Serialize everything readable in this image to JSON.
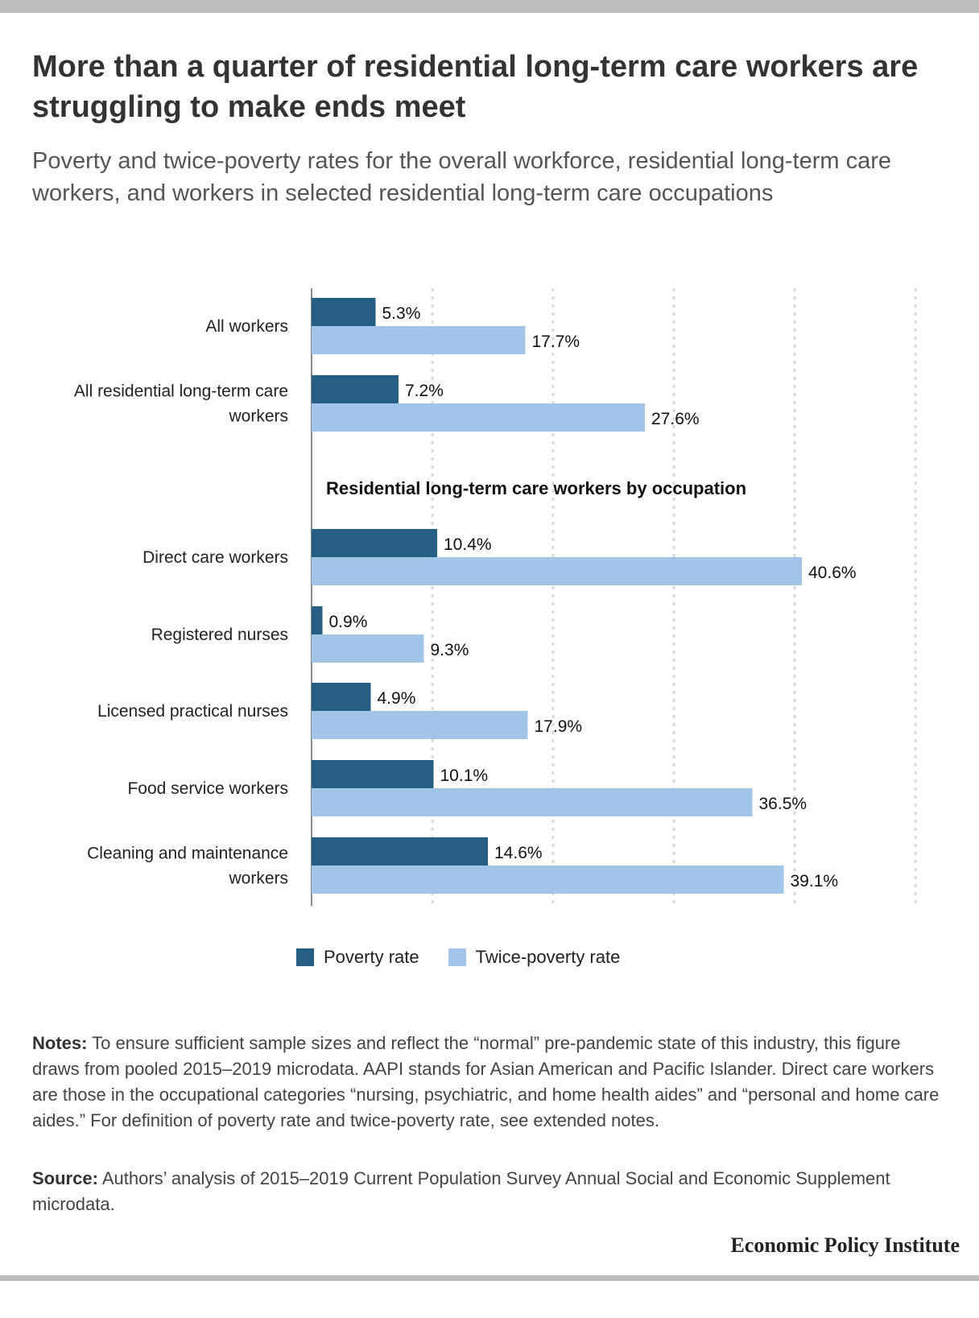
{
  "header": {
    "title": "More than a quarter of residential long-term care workers are struggling to make ends meet",
    "subtitle": "Poverty and twice-poverty rates for the overall workforce, residential long-term care workers, and workers in selected residential long-term care occupations"
  },
  "chart_data": {
    "type": "bar",
    "orientation": "horizontal",
    "categories": [
      "All workers",
      "All residential long-term care workers",
      "Direct care workers",
      "Registered nurses",
      "Licensed practical nurses",
      "Food service workers",
      "Cleaning and maintenance workers"
    ],
    "category_lines": [
      [
        "All workers"
      ],
      [
        "All residential long-term care",
        "workers"
      ],
      [
        "Direct care workers"
      ],
      [
        "Registered nurses"
      ],
      [
        "Licensed practical nurses"
      ],
      [
        "Food service workers"
      ],
      [
        "Cleaning and maintenance",
        "workers"
      ]
    ],
    "section_heading": "Residential long-term care workers by occupation",
    "series": [
      {
        "name": "Poverty rate",
        "color": "#256084",
        "values": [
          5.3,
          7.2,
          10.4,
          0.9,
          4.9,
          10.1,
          14.6
        ],
        "labels": [
          "5.3%",
          "7.2%",
          "10.4%",
          "0.9%",
          "4.9%",
          "10.1%",
          "14.6%"
        ]
      },
      {
        "name": "Twice-poverty rate",
        "color": "#a0c5e8",
        "values": [
          17.7,
          27.6,
          40.6,
          9.3,
          17.9,
          36.5,
          39.1
        ],
        "labels": [
          "17.7%",
          "27.6%",
          "40.6%",
          "9.3%",
          "17.9%",
          "36.5%",
          "39.1%"
        ]
      }
    ],
    "xlim": [
      0,
      50
    ],
    "grid": true,
    "legend_position": "bottom"
  },
  "legend": {
    "items": [
      {
        "label": "Poverty rate",
        "color": "#256084"
      },
      {
        "label": "Twice-poverty rate",
        "color": "#a0c5e8"
      }
    ]
  },
  "notes": {
    "label": "Notes:",
    "text": " To ensure sufficient sample sizes and reflect the “normal” pre-pandemic state of this industry, this figure draws from pooled 2015–2019 microdata. AAPI stands for Asian American and Pacific Islander. Direct care workers are those in the occupational categories “nursing, psychiatric, and home health aides” and “personal and home care aides.” For definition of poverty rate and twice-poverty rate, see extended notes."
  },
  "source": {
    "label": "Source:",
    "text": " Authors’ analysis of 2015–2019 Current Population Survey Annual Social and Economic Supplement microdata."
  },
  "brand": "Economic Policy Institute"
}
